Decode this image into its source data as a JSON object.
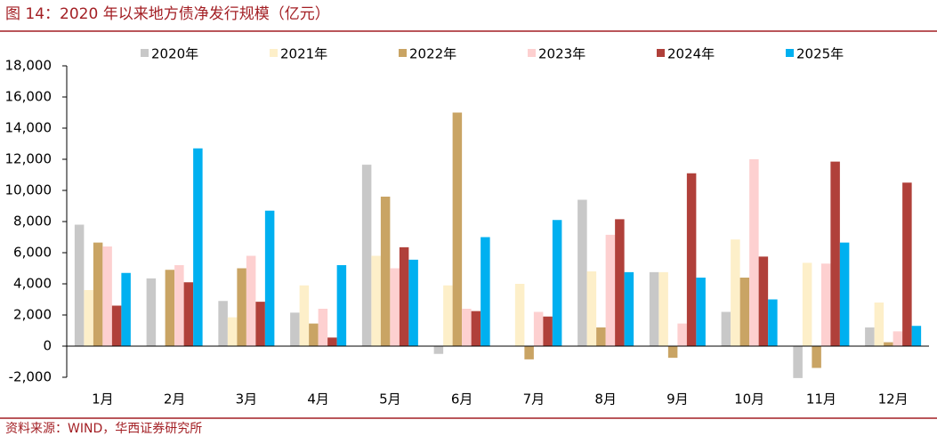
{
  "chart_data": {
    "type": "bar",
    "title": "图 14：2020 年以来地方债净发行规模（亿元）",
    "source": "资料来源：WIND，华西证券研究所",
    "categories": [
      "1月",
      "2月",
      "3月",
      "4月",
      "5月",
      "6月",
      "7月",
      "8月",
      "9月",
      "10月",
      "11月",
      "12月"
    ],
    "series": [
      {
        "name": "2020年",
        "color": "#c8c8c8",
        "values": [
          7800,
          4350,
          2900,
          2150,
          11650,
          -500,
          null,
          9400,
          4750,
          2200,
          -2050,
          1200
        ]
      },
      {
        "name": "2021年",
        "color": "#fdefc9",
        "values": [
          3600,
          null,
          1850,
          3900,
          5800,
          3900,
          4000,
          4800,
          4750,
          6850,
          5350,
          2800
        ]
      },
      {
        "name": "2022年",
        "color": "#c9a464",
        "values": [
          6650,
          4900,
          5000,
          1450,
          9600,
          15000,
          -850,
          1200,
          -750,
          4400,
          -1400,
          250
        ]
      },
      {
        "name": "2023年",
        "color": "#fdd0d0",
        "values": [
          6400,
          5200,
          5800,
          2400,
          5000,
          2400,
          2200,
          7150,
          1450,
          12000,
          5300,
          950
        ]
      },
      {
        "name": "2024年",
        "color": "#b0403a",
        "values": [
          2600,
          4100,
          2850,
          550,
          6350,
          2250,
          1900,
          8150,
          11100,
          5750,
          11850,
          10500
        ]
      },
      {
        "name": "2025年",
        "color": "#00b0f0",
        "values": [
          4700,
          12700,
          8700,
          5200,
          5550,
          7000,
          8100,
          4750,
          4400,
          3000,
          6650,
          1300
        ]
      }
    ],
    "ylim": [
      -2000,
      18000
    ],
    "yticks": [
      {
        "value": -2000,
        "label": "-2,000"
      },
      0,
      {
        "value": 2000,
        "label": "2,000"
      },
      {
        "value": 4000,
        "label": "4,000"
      },
      {
        "value": 6000,
        "label": "6,000"
      },
      {
        "value": 8000,
        "label": "8,000"
      },
      {
        "value": 10000,
        "label": "10,000"
      },
      {
        "value": 12000,
        "label": "12,000"
      },
      {
        "value": 14000,
        "label": "14,000"
      },
      {
        "value": 16000,
        "label": "16,000"
      },
      {
        "value": 18000,
        "label": "18,000"
      }
    ]
  }
}
